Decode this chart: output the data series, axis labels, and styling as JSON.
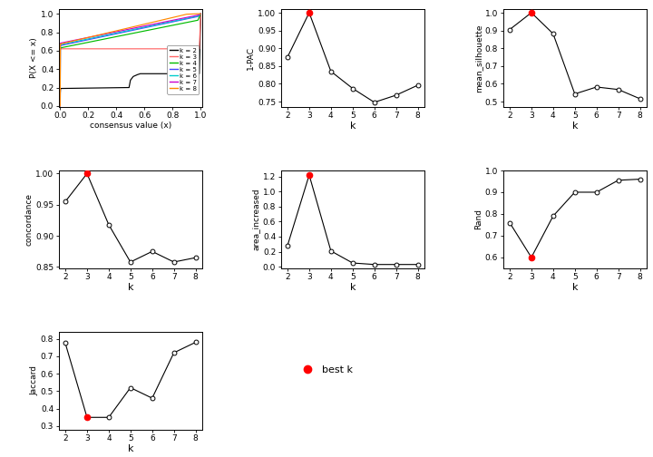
{
  "k_values": [
    2,
    3,
    4,
    5,
    6,
    7,
    8
  ],
  "one_pac": [
    0.875,
    1.0,
    0.835,
    0.787,
    0.748,
    0.768,
    0.796
  ],
  "mean_silhouette": [
    0.905,
    1.0,
    0.882,
    0.543,
    0.582,
    0.568,
    0.516
  ],
  "concordance": [
    0.955,
    1.0,
    0.918,
    0.858,
    0.875,
    0.858,
    0.865
  ],
  "area_increased": [
    0.28,
    1.22,
    0.21,
    0.05,
    0.03,
    0.03,
    0.03
  ],
  "rand": [
    0.76,
    0.6,
    0.79,
    0.9,
    0.9,
    0.955,
    0.96
  ],
  "jaccard": [
    0.775,
    0.35,
    0.35,
    0.52,
    0.46,
    0.72,
    0.78
  ],
  "best_k_1pac": 3,
  "best_k_sil": 3,
  "best_k_conc": 3,
  "best_k_area": 3,
  "best_k_rand": 3,
  "best_k_jacc": 3,
  "ecdf_colors": [
    "#000000",
    "#FF6666",
    "#00BB00",
    "#4444FF",
    "#00CCCC",
    "#CC00CC",
    "#FF8800"
  ],
  "ecdf_labels": [
    "k = 2",
    "k = 3",
    "k = 4",
    "k = 5",
    "k = 6",
    "k = 7",
    "k = 8"
  ]
}
